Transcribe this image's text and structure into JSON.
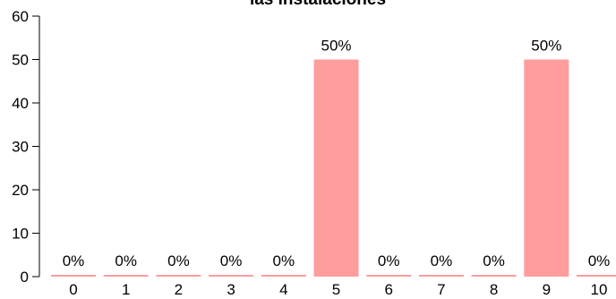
{
  "chart_data": {
    "type": "bar",
    "title": "las instalaciones",
    "categories": [
      "0",
      "1",
      "2",
      "3",
      "4",
      "5",
      "6",
      "7",
      "8",
      "9",
      "10"
    ],
    "values": [
      0,
      0,
      0,
      0,
      0,
      50,
      0,
      0,
      0,
      50,
      0
    ],
    "data_labels": [
      "0%",
      "0%",
      "0%",
      "0%",
      "0%",
      "50%",
      "0%",
      "0%",
      "0%",
      "50%",
      "0%"
    ],
    "ylim": [
      0,
      60
    ],
    "yticks": [
      "0",
      "10",
      "20",
      "30",
      "40",
      "50",
      "60"
    ],
    "grid": false,
    "legend": "none",
    "bar_color": "#ff9c9c",
    "axis_color": "#000000"
  }
}
